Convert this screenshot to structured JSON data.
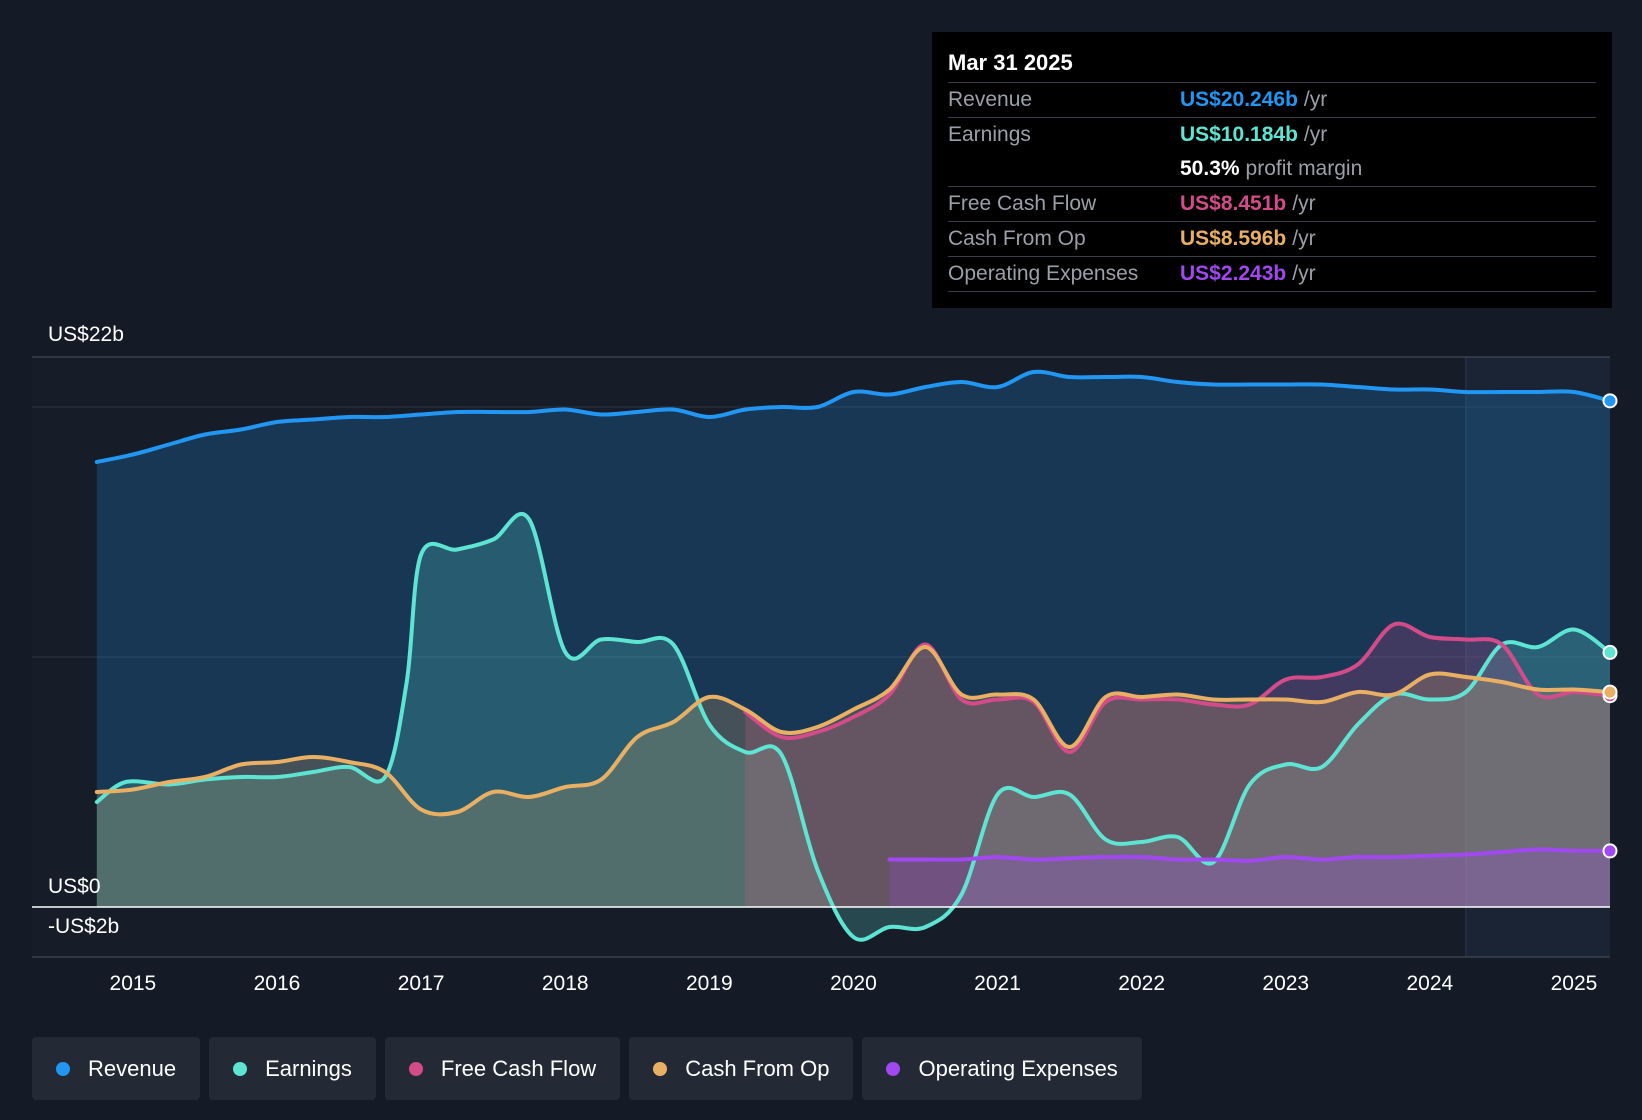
{
  "chart_data": {
    "type": "line",
    "y_unit": "US$b",
    "ylim": [
      -2,
      22
    ],
    "y_ticks": [
      {
        "value": 22,
        "label": "US$22b"
      },
      {
        "value": 0,
        "label": "US$0"
      },
      {
        "value": -2,
        "label": "-US$2b"
      }
    ],
    "gridlines": [
      20,
      10
    ],
    "xlim": [
      2014.3,
      2025.25
    ],
    "x_ticks": [
      "2015",
      "2016",
      "2017",
      "2018",
      "2019",
      "2020",
      "2021",
      "2022",
      "2023",
      "2024",
      "2025"
    ],
    "forecast_start": 2024.25,
    "series": [
      {
        "name": "Revenue",
        "color": "#2196f3",
        "fill": true,
        "x": [
          2014.75,
          2015.0,
          2015.25,
          2015.5,
          2015.75,
          2016.0,
          2016.25,
          2016.5,
          2016.75,
          2017.0,
          2017.25,
          2017.5,
          2017.75,
          2018.0,
          2018.25,
          2018.5,
          2018.75,
          2019.0,
          2019.25,
          2019.5,
          2019.75,
          2020.0,
          2020.25,
          2020.5,
          2020.75,
          2021.0,
          2021.25,
          2021.5,
          2021.75,
          2022.0,
          2022.25,
          2022.5,
          2022.75,
          2023.0,
          2023.25,
          2023.5,
          2023.75,
          2024.0,
          2024.25,
          2024.5,
          2024.75,
          2025.0,
          2025.25
        ],
        "values": [
          17.8,
          18.1,
          18.5,
          18.9,
          19.1,
          19.4,
          19.5,
          19.6,
          19.6,
          19.7,
          19.8,
          19.8,
          19.8,
          19.9,
          19.7,
          19.8,
          19.9,
          19.6,
          19.9,
          20.0,
          20.0,
          20.6,
          20.5,
          20.8,
          21.0,
          20.8,
          21.4,
          21.2,
          21.2,
          21.2,
          21.0,
          20.9,
          20.9,
          20.9,
          20.9,
          20.8,
          20.7,
          20.7,
          20.6,
          20.6,
          20.6,
          20.6,
          20.246
        ]
      },
      {
        "name": "Earnings",
        "color": "#5ee4d2",
        "fill": true,
        "x": [
          2014.75,
          2014.95,
          2015.25,
          2015.5,
          2015.75,
          2016.0,
          2016.25,
          2016.5,
          2016.75,
          2016.9,
          2017.0,
          2017.25,
          2017.5,
          2017.75,
          2018.0,
          2018.25,
          2018.5,
          2018.75,
          2019.0,
          2019.25,
          2019.5,
          2019.75,
          2020.0,
          2020.25,
          2020.5,
          2020.75,
          2021.0,
          2021.25,
          2021.5,
          2021.75,
          2022.0,
          2022.25,
          2022.5,
          2022.75,
          2023.0,
          2023.25,
          2023.5,
          2023.75,
          2024.0,
          2024.25,
          2024.5,
          2024.75,
          2025.0,
          2025.25
        ],
        "values": [
          4.2,
          5.0,
          4.9,
          5.1,
          5.2,
          5.2,
          5.4,
          5.6,
          5.2,
          9.0,
          14.1,
          14.3,
          14.7,
          15.5,
          10.2,
          10.7,
          10.6,
          10.5,
          7.3,
          6.2,
          6.1,
          1.5,
          -1.2,
          -0.8,
          -0.8,
          0.5,
          4.5,
          4.4,
          4.5,
          2.7,
          2.6,
          2.8,
          1.8,
          4.9,
          5.7,
          5.6,
          7.3,
          8.5,
          8.3,
          8.6,
          10.5,
          10.4,
          11.1,
          10.184
        ]
      },
      {
        "name": "Free Cash Flow",
        "color": "#d44b8a",
        "fill": true,
        "x": [
          2019.25,
          2019.5,
          2019.75,
          2020.0,
          2020.25,
          2020.5,
          2020.75,
          2021.0,
          2021.25,
          2021.5,
          2021.75,
          2022.0,
          2022.25,
          2022.5,
          2022.75,
          2023.0,
          2023.25,
          2023.5,
          2023.75,
          2024.0,
          2024.25,
          2024.5,
          2024.75,
          2025.0,
          2025.25
        ],
        "values": [
          7.8,
          6.8,
          7.0,
          7.6,
          8.5,
          10.5,
          8.3,
          8.3,
          8.2,
          6.2,
          8.2,
          8.3,
          8.3,
          8.1,
          8.1,
          9.1,
          9.2,
          9.7,
          11.3,
          10.8,
          10.7,
          10.5,
          8.5,
          8.6,
          8.451
        ]
      },
      {
        "name": "Cash From Op",
        "color": "#e9b063",
        "fill": true,
        "x": [
          2014.75,
          2015.0,
          2015.25,
          2015.5,
          2015.75,
          2016.0,
          2016.25,
          2016.5,
          2016.75,
          2017.0,
          2017.25,
          2017.5,
          2017.75,
          2018.0,
          2018.25,
          2018.5,
          2018.75,
          2019.0,
          2019.25,
          2019.5,
          2019.75,
          2020.0,
          2020.25,
          2020.5,
          2020.75,
          2021.0,
          2021.25,
          2021.5,
          2021.75,
          2022.0,
          2022.25,
          2022.5,
          2022.75,
          2023.0,
          2023.25,
          2023.5,
          2023.75,
          2024.0,
          2024.25,
          2024.5,
          2024.75,
          2025.0,
          2025.25
        ],
        "values": [
          4.6,
          4.7,
          5.0,
          5.2,
          5.7,
          5.8,
          6.0,
          5.8,
          5.4,
          3.9,
          3.8,
          4.6,
          4.4,
          4.8,
          5.1,
          6.8,
          7.4,
          8.4,
          7.9,
          7.0,
          7.2,
          7.9,
          8.7,
          10.4,
          8.5,
          8.5,
          8.3,
          6.4,
          8.4,
          8.4,
          8.5,
          8.3,
          8.3,
          8.3,
          8.2,
          8.6,
          8.5,
          9.3,
          9.2,
          9.0,
          8.7,
          8.7,
          8.596
        ]
      },
      {
        "name": "Operating Expenses",
        "color": "#a148f0",
        "fill": true,
        "x": [
          2020.25,
          2020.5,
          2020.75,
          2021.0,
          2021.25,
          2021.5,
          2021.75,
          2022.0,
          2022.25,
          2022.5,
          2022.75,
          2023.0,
          2023.25,
          2023.5,
          2023.75,
          2024.0,
          2024.25,
          2024.5,
          2024.75,
          2025.0,
          2025.25
        ],
        "values": [
          1.9,
          1.9,
          1.9,
          2.0,
          1.9,
          1.95,
          2.0,
          2.0,
          1.9,
          1.9,
          1.85,
          2.0,
          1.9,
          2.0,
          2.0,
          2.05,
          2.1,
          2.2,
          2.3,
          2.25,
          2.243
        ]
      }
    ]
  },
  "tooltip": {
    "date": "Mar 31 2025",
    "rows": [
      {
        "label": "Revenue",
        "value": "US$20.246b",
        "unit": "/yr",
        "color": "#2196f3"
      },
      {
        "label": "Earnings",
        "value": "US$10.184b",
        "unit": "/yr",
        "color": "#5ee4d2"
      },
      {
        "label": "",
        "value": "50.3%",
        "unit": "profit margin",
        "color": "#ffffff"
      },
      {
        "label": "Free Cash Flow",
        "value": "US$8.451b",
        "unit": "/yr",
        "color": "#d44b8a"
      },
      {
        "label": "Cash From Op",
        "value": "US$8.596b",
        "unit": "/yr",
        "color": "#e9b063"
      },
      {
        "label": "Operating Expenses",
        "value": "US$2.243b",
        "unit": "/yr",
        "color": "#a148f0"
      }
    ]
  },
  "legend": [
    {
      "label": "Revenue",
      "color": "#2196f3"
    },
    {
      "label": "Earnings",
      "color": "#5ee4d2"
    },
    {
      "label": "Free Cash Flow",
      "color": "#d44b8a"
    },
    {
      "label": "Cash From Op",
      "color": "#e9b063"
    },
    {
      "label": "Operating Expenses",
      "color": "#a148f0"
    }
  ]
}
